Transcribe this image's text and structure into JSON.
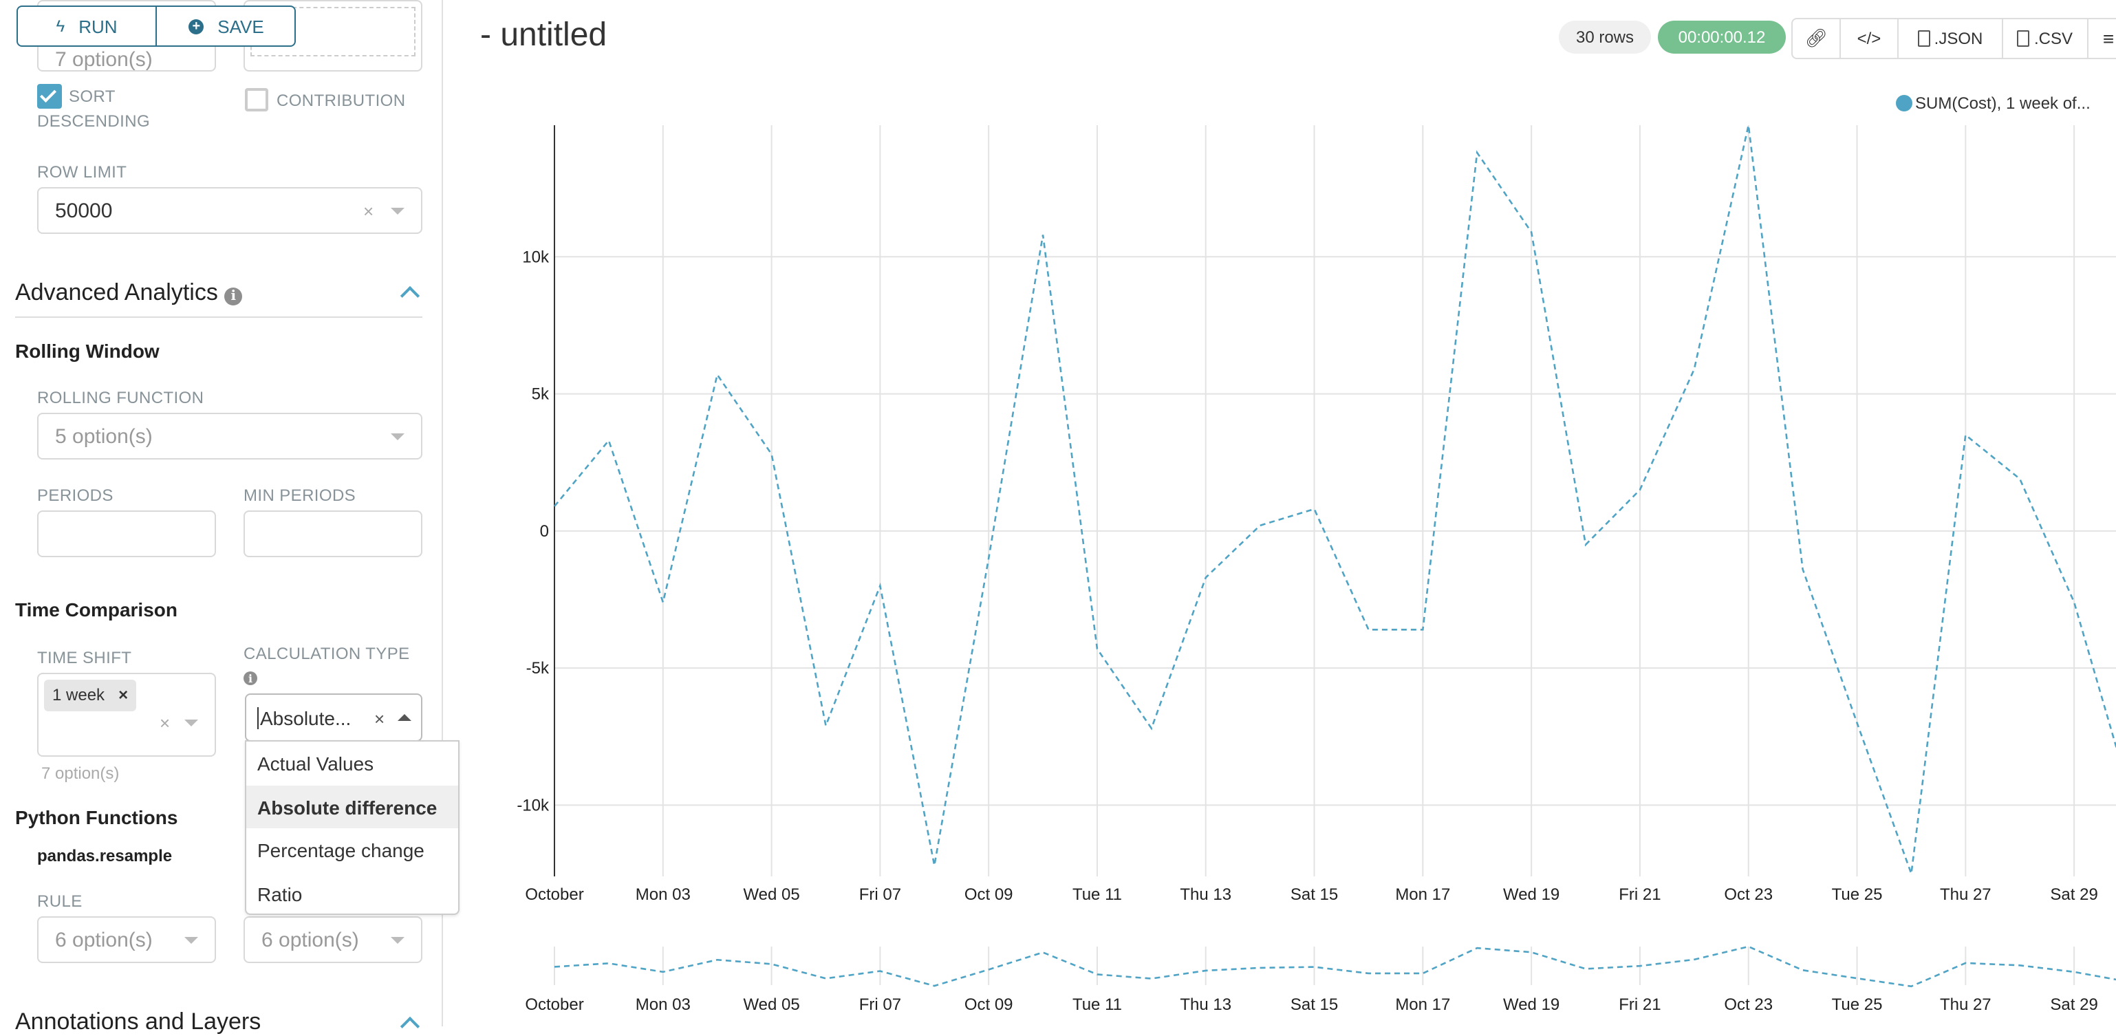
{
  "toolbar": {
    "run_label": "RUN",
    "save_label": "SAVE"
  },
  "left": {
    "hidden_select_value": "7 option(s)",
    "sort_descending": {
      "label_1": "SORT",
      "label_2": "DESCENDING",
      "checked": true
    },
    "contribution": {
      "label": "CONTRIBUTION",
      "checked": false
    },
    "row_limit": {
      "label": "ROW LIMIT",
      "value": "50000"
    },
    "advanced_analytics": {
      "title": "Advanced Analytics"
    },
    "rolling_window": {
      "title": "Rolling Window",
      "rolling_function_label": "ROLLING FUNCTION",
      "rolling_function_placeholder": "5 option(s)",
      "periods_label": "PERIODS",
      "min_periods_label": "MIN PERIODS"
    },
    "time_comparison": {
      "title": "Time Comparison",
      "time_shift_label": "TIME SHIFT",
      "time_shift_tag": "1 week",
      "time_shift_options": "7 option(s)",
      "calc_type_label": "CALCULATION TYPE",
      "calc_type_value": "Absolute...",
      "calc_options": [
        "Actual Values",
        "Absolute difference",
        "Percentage change",
        "Ratio"
      ],
      "calc_highlighted": "Absolute difference"
    },
    "python_functions": {
      "title": "Python Functions",
      "subtitle": "pandas.resample",
      "rule_label": "RULE",
      "rule_placeholder": "6 option(s)",
      "method_placeholder": "6 option(s)"
    },
    "annotations": {
      "title": "Annotations and Layers"
    }
  },
  "header": {
    "title": "- untitled",
    "rows_badge": "30 rows",
    "timer": "00:00:00.12",
    "json_label": ".JSON",
    "csv_label": ".CSV"
  },
  "colors": {
    "accent": "#4fa3c4",
    "button": "#2b6f8a",
    "timer": "#77c190"
  },
  "icons": {
    "run": "bolt-icon",
    "save": "plus-circle-icon",
    "link": "link-icon",
    "embed": "code-icon",
    "json": "file-code-icon",
    "csv": "file-text-icon",
    "menu": "hamburger-icon"
  },
  "chart_data": {
    "type": "line",
    "legend": {
      "entries": [
        "SUM(Cost), 1 week of..."
      ],
      "placement": "top-right"
    },
    "series": [
      {
        "name": "SUM(Cost), 1 week of...",
        "style": "dashed",
        "color": "#4fa3c4",
        "x": [
          "2022-10-01",
          "2022-10-02",
          "2022-10-03",
          "2022-10-04",
          "2022-10-05",
          "2022-10-06",
          "2022-10-07",
          "2022-10-08",
          "2022-10-09",
          "2022-10-10",
          "2022-10-11",
          "2022-10-12",
          "2022-10-13",
          "2022-10-14",
          "2022-10-15",
          "2022-10-16",
          "2022-10-17",
          "2022-10-18",
          "2022-10-19",
          "2022-10-20",
          "2022-10-21",
          "2022-10-22",
          "2022-10-23",
          "2022-10-24",
          "2022-10-25",
          "2022-10-26",
          "2022-10-27",
          "2022-10-28",
          "2022-10-29",
          "2022-10-30"
        ],
        "values": [
          900,
          3300,
          -2600,
          5700,
          2800,
          -7100,
          -2000,
          -12200,
          -1000,
          10800,
          -4300,
          -7200,
          -1700,
          200,
          800,
          -3600,
          -3600,
          13800,
          10900,
          -500,
          1500,
          5900,
          14800,
          -1400,
          -7000,
          -12500,
          3500,
          1900,
          -2600,
          -9400
        ]
      }
    ],
    "x_tick_labels": [
      "October",
      "Mon 03",
      "Wed 05",
      "Fri 07",
      "Oct 09",
      "Tue 11",
      "Thu 13",
      "Sat 15",
      "Mon 17",
      "Wed 19",
      "Fri 21",
      "Oct 23",
      "Tue 25",
      "Thu 27",
      "Sat 29"
    ],
    "y_ticks": [
      -10000,
      -5000,
      0,
      5000,
      10000
    ],
    "y_tick_labels": [
      "-10k",
      "-5k",
      "0",
      "5k",
      "10k"
    ],
    "ylim": [
      -12600,
      14800
    ],
    "grid": true,
    "brush_overview": true
  }
}
